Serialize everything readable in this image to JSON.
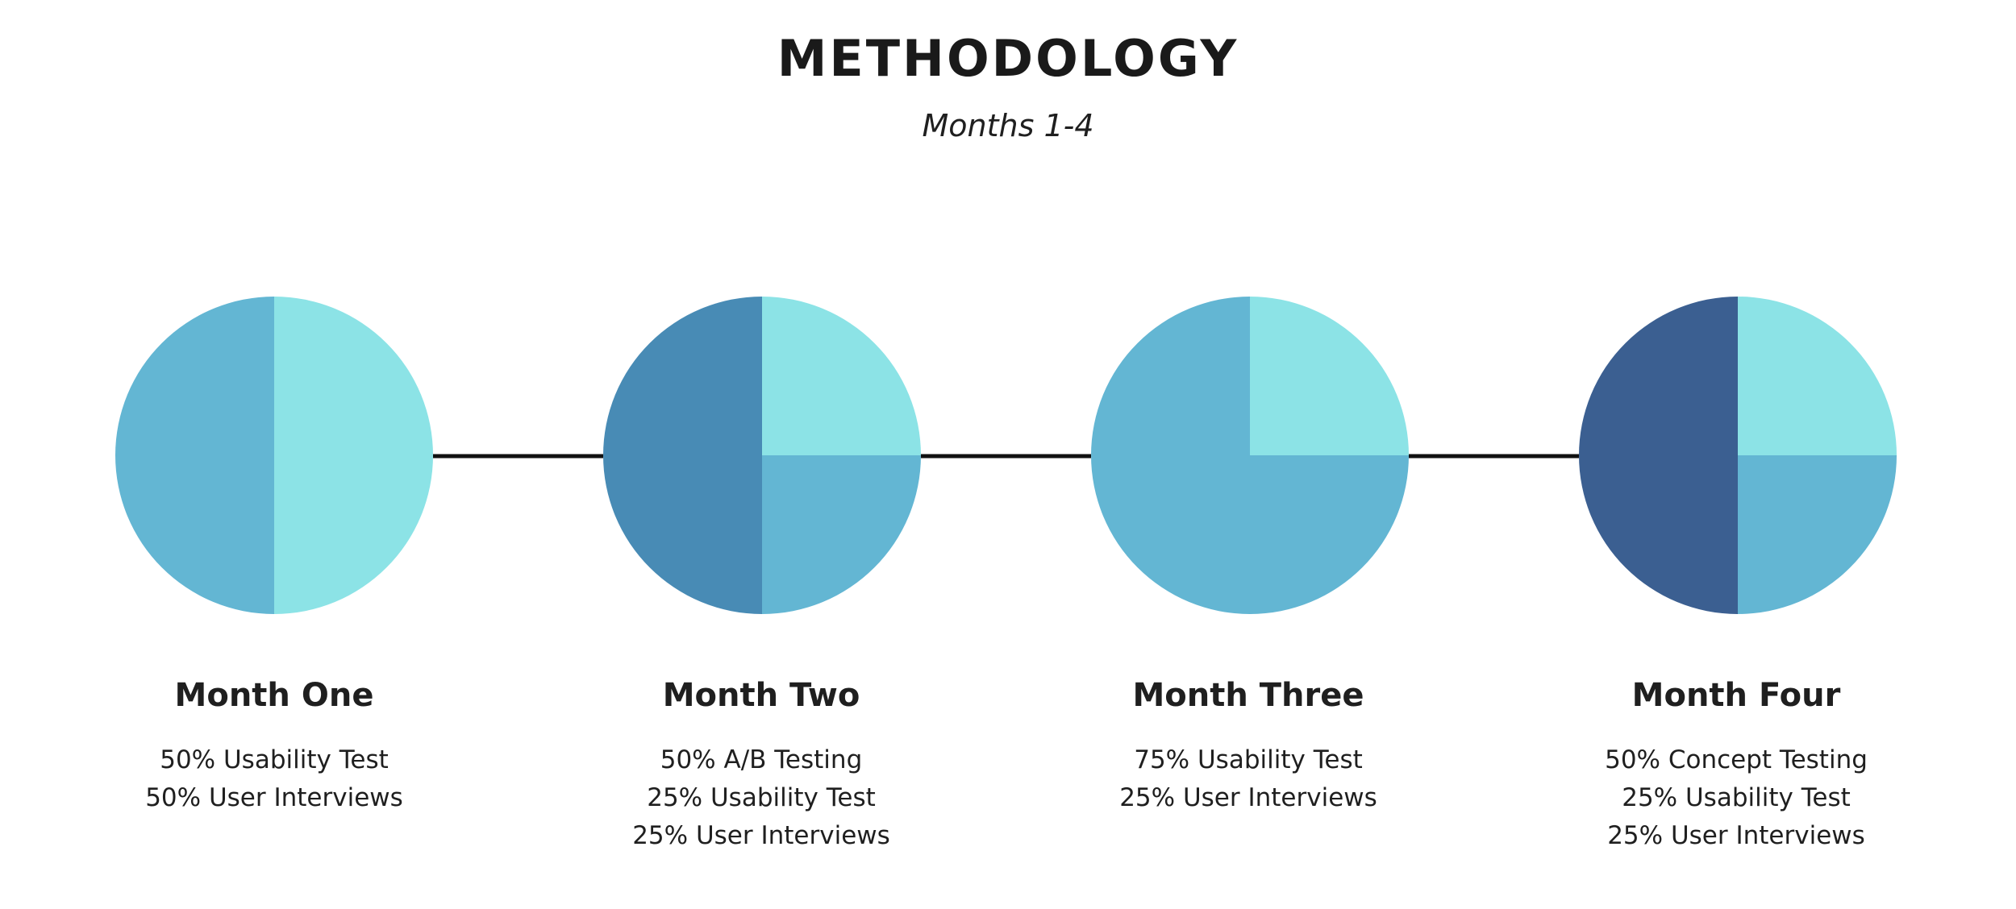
{
  "header": {
    "title": "METHODOLOGY",
    "subtitle": "Months 1-4"
  },
  "colors": {
    "light_cyan": "#8CE3E6",
    "sky_blue": "#63B6D3",
    "steel_blue": "#488BB5",
    "navy_blue": "#3B5F91",
    "connector": "#111111"
  },
  "chart_data": {
    "type": "pie",
    "charts": [
      {
        "title": "Month One",
        "slices": [
          {
            "label": "Usability Test",
            "value": 50,
            "color": "#8CE3E6"
          },
          {
            "label": "User Interviews",
            "value": 50,
            "color": "#63B6D3"
          }
        ]
      },
      {
        "title": "Month Two",
        "slices": [
          {
            "label": "User Interviews",
            "value": 25,
            "color": "#8CE3E6"
          },
          {
            "label": "Usability Test",
            "value": 25,
            "color": "#63B6D3"
          },
          {
            "label": "A/B Testing",
            "value": 50,
            "color": "#488BB5"
          }
        ]
      },
      {
        "title": "Month Three",
        "slices": [
          {
            "label": "User Interviews",
            "value": 25,
            "color": "#8CE3E6"
          },
          {
            "label": "Usability Test",
            "value": 75,
            "color": "#63B6D3"
          }
        ]
      },
      {
        "title": "Month Four",
        "slices": [
          {
            "label": "User Interviews",
            "value": 25,
            "color": "#8CE3E6"
          },
          {
            "label": "Usability Test",
            "value": 25,
            "color": "#63B6D3"
          },
          {
            "label": "Concept Testing",
            "value": 50,
            "color": "#3B5F91"
          }
        ]
      }
    ]
  },
  "months": [
    {
      "title": "Month One",
      "lines": [
        "50% Usability Test",
        "50% User Interviews"
      ]
    },
    {
      "title": "Month Two",
      "lines": [
        "50% A/B Testing",
        "25% Usability Test",
        "25% User Interviews"
      ]
    },
    {
      "title": "Month Three",
      "lines": [
        "75% Usability Test",
        "25% User Interviews"
      ]
    },
    {
      "title": "Month Four",
      "lines": [
        "50% Concept Testing",
        "25% Usability Test",
        "25% User Interviews"
      ]
    }
  ]
}
